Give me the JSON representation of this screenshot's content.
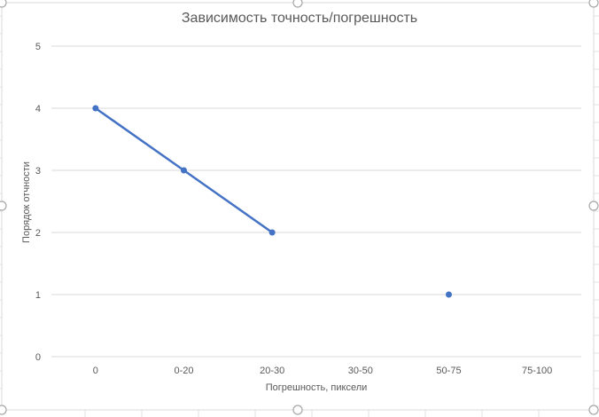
{
  "chart_data": {
    "type": "line",
    "title": "Зависимость точность/погрешность",
    "xlabel": "Погрешность, пиксели",
    "ylabel": "Порядок отчности",
    "categories": [
      "0",
      "0-20",
      "20-30",
      "30-50",
      "50-75",
      "75-100"
    ],
    "series": [
      {
        "values": [
          4,
          3,
          2,
          null,
          1,
          null
        ],
        "color": "#4472c4"
      }
    ],
    "ylim": [
      0,
      5
    ],
    "yticks": [
      "0",
      "1",
      "2",
      "3",
      "4",
      "5"
    ],
    "grid": true,
    "legend": "none"
  },
  "colors": {
    "line": "#4472c4",
    "grid": "#d9d9d9",
    "text": "#595959",
    "handle": "#a6a6a6"
  }
}
